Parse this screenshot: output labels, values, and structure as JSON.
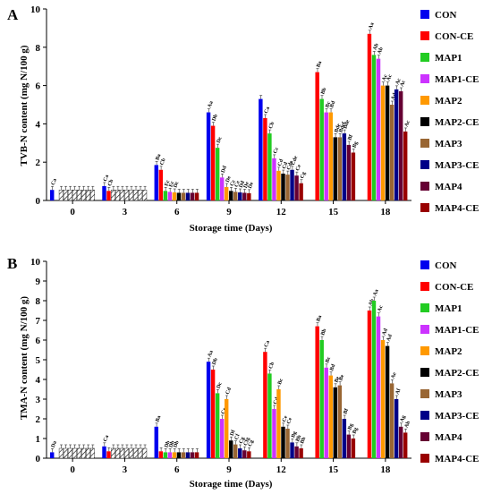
{
  "chart_data": [
    {
      "type": "bar",
      "panel_label": "A",
      "ylabel": "TVB-N content (mg N/100 g)",
      "xlabel": "Storage time (Days)",
      "ylim": [
        0,
        10
      ],
      "yticks": [
        0,
        2,
        4,
        6,
        8,
        10
      ],
      "categories": [
        "0",
        "3",
        "6",
        "9",
        "12",
        "15",
        "18"
      ],
      "legend_position": "right",
      "series": [
        {
          "name": "CON",
          "color": "#0000ee",
          "values": [
            0.55,
            0.75,
            1.85,
            4.6,
            5.3,
            null,
            null
          ],
          "labels": [
            "Ca",
            "Ca",
            "Ba",
            "Aa",
            null,
            null,
            null
          ]
        },
        {
          "name": "CON-CE",
          "color": "#ff0000",
          "values": [
            null,
            0.5,
            1.6,
            3.9,
            4.3,
            6.7,
            8.7
          ],
          "labels": [
            null,
            "Cb",
            "Cb",
            "Db",
            "Ca",
            "Ba",
            "Aa"
          ]
        },
        {
          "name": "MAP1",
          "color": "#22cc22",
          "values": [
            0.55,
            0.55,
            0.5,
            2.75,
            3.5,
            5.3,
            7.6
          ],
          "labels": [
            null,
            null,
            "Ec",
            "Dc",
            "Cb",
            "Bb",
            "Ab"
          ]
        },
        {
          "name": "MAP1-CE",
          "color": "#cc33ff",
          "values": [
            0.55,
            0.55,
            0.45,
            1.2,
            2.2,
            4.6,
            7.4
          ],
          "labels": [
            null,
            null,
            "Ec",
            "Dd",
            "Cc",
            "Bc",
            "Ab"
          ]
        },
        {
          "name": "MAP2",
          "color": "#ff9900",
          "values": [
            0.55,
            0.55,
            0.42,
            0.7,
            1.55,
            4.6,
            6.0
          ],
          "labels": [
            null,
            null,
            "Dc",
            "De",
            "Cd",
            "Bd",
            "Ac"
          ]
        },
        {
          "name": "MAP2-CE",
          "color": "#000000",
          "values": [
            0.55,
            0.55,
            0.4,
            0.5,
            1.4,
            3.3,
            6.0
          ],
          "labels": [
            null,
            null,
            null,
            "Cc",
            "Cd",
            "Bde",
            "Ac"
          ]
        },
        {
          "name": "MAP3",
          "color": "#996633",
          "values": [
            0.55,
            0.55,
            0.4,
            0.45,
            1.35,
            3.3,
            5.0
          ],
          "labels": [
            null,
            null,
            null,
            "Ce",
            "Cde",
            "Bdef",
            "Ad"
          ]
        },
        {
          "name": "MAP3-CE",
          "color": "#000088",
          "values": [
            0.55,
            0.55,
            0.4,
            0.42,
            1.6,
            3.5,
            5.8
          ],
          "labels": [
            null,
            null,
            null,
            "Dd",
            "Cde",
            "Bde",
            "Ac"
          ]
        },
        {
          "name": "MAP4",
          "color": "#660033",
          "values": [
            0.55,
            0.55,
            0.4,
            0.4,
            1.3,
            2.9,
            5.7
          ],
          "labels": [
            null,
            null,
            null,
            "De",
            "Ce",
            "Bf",
            "Ac"
          ]
        },
        {
          "name": "MAP4-CE",
          "color": "#990000",
          "values": [
            0.55,
            0.55,
            0.4,
            0.38,
            0.9,
            2.5,
            3.6
          ],
          "labels": [
            null,
            null,
            null,
            "De",
            "Cg",
            "Bg",
            "Ac"
          ]
        }
      ]
    },
    {
      "type": "bar",
      "panel_label": "B",
      "ylabel": "TMA-N content (mg N/100 g)",
      "xlabel": "Storage time (Days)",
      "ylim": [
        0,
        10
      ],
      "yticks": [
        0,
        1,
        2,
        3,
        4,
        5,
        6,
        7,
        8,
        9,
        10
      ],
      "categories": [
        "0",
        "3",
        "6",
        "9",
        "12",
        "15",
        "18"
      ],
      "legend_position": "right",
      "series": [
        {
          "name": "CON",
          "color": "#0000ee",
          "values": [
            0.3,
            0.6,
            1.6,
            4.9,
            null,
            null,
            null
          ],
          "labels": [
            "Da",
            "Ca",
            "Ba",
            "Aa",
            null,
            null,
            null
          ]
        },
        {
          "name": "CON-CE",
          "color": "#ff0000",
          "values": [
            null,
            0.35,
            0.35,
            4.5,
            5.4,
            6.7,
            7.5
          ],
          "labels": [
            null,
            null,
            null,
            "Db",
            "Ca",
            "Ba",
            "Ab"
          ]
        },
        {
          "name": "MAP1",
          "color": "#22cc22",
          "values": [
            0.5,
            0.5,
            0.3,
            3.3,
            4.3,
            6.0,
            8.0
          ],
          "labels": [
            null,
            null,
            "Db",
            "Dc",
            "Cb",
            "Bb",
            "Aa"
          ]
        },
        {
          "name": "MAP1-CE",
          "color": "#cc33ff",
          "values": [
            0.5,
            0.5,
            0.3,
            2.0,
            2.5,
            4.6,
            7.2
          ],
          "labels": [
            null,
            null,
            "Db",
            "Ce",
            "Cd",
            "Bc",
            "Ac"
          ]
        },
        {
          "name": "MAP2",
          "color": "#ff9900",
          "values": [
            0.5,
            0.5,
            0.3,
            3.0,
            3.5,
            4.2,
            6.0
          ],
          "labels": [
            null,
            null,
            "Db",
            "Cd",
            "Bc",
            "Bd",
            "Ad"
          ]
        },
        {
          "name": "MAP2-CE",
          "color": "#000000",
          "values": [
            0.5,
            0.5,
            0.3,
            0.9,
            1.6,
            3.6,
            5.7
          ],
          "labels": [
            null,
            null,
            null,
            "Df",
            "Ce",
            "Be",
            "Ad"
          ]
        },
        {
          "name": "MAP3",
          "color": "#996633",
          "values": [
            0.5,
            0.5,
            0.3,
            0.7,
            1.5,
            3.7,
            3.8
          ],
          "labels": [
            null,
            null,
            null,
            "Cf",
            "Ce",
            "Be",
            "Ae"
          ]
        },
        {
          "name": "MAP3-CE",
          "color": "#000088",
          "values": [
            0.5,
            0.5,
            0.3,
            0.5,
            0.8,
            2.0,
            3.0
          ],
          "labels": [
            null,
            null,
            null,
            "Cg",
            "Bg",
            "Bf",
            "Af"
          ]
        },
        {
          "name": "MAP4",
          "color": "#660033",
          "values": [
            0.5,
            0.5,
            0.3,
            0.4,
            0.6,
            1.2,
            1.6
          ],
          "labels": [
            null,
            null,
            null,
            "Cfg",
            "Bh",
            "Bg",
            "Ag"
          ]
        },
        {
          "name": "MAP4-CE",
          "color": "#990000",
          "values": [
            0.5,
            0.5,
            0.3,
            0.35,
            0.5,
            1.0,
            1.3
          ],
          "labels": [
            null,
            null,
            null,
            "Cg",
            "Bh",
            "Bg",
            "Ah"
          ]
        }
      ]
    }
  ]
}
